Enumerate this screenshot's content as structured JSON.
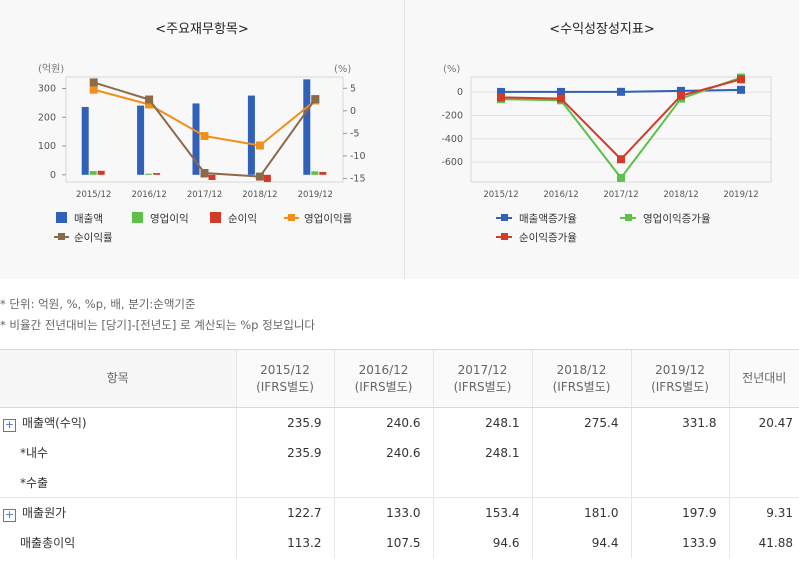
{
  "charts": {
    "left_title": "<주요재무항목>",
    "right_title": "<수익성장성지표>"
  },
  "chart_data": [
    {
      "type": "bar",
      "title": "<주요재무항목>",
      "y_left_unit": "(억원)",
      "y_right_unit": "(%)",
      "categories": [
        "2015/12",
        "2016/12",
        "2017/12",
        "2018/12",
        "2019/12"
      ],
      "y_left_ticks": [
        "0",
        "100",
        "200",
        "300"
      ],
      "y_right_ticks": [
        "5",
        "0",
        "-5",
        "-10",
        "-15"
      ],
      "ylim_left": [
        -25,
        340
      ],
      "ylim_right": [
        -15.8,
        7.5
      ],
      "bar_series": [
        {
          "name": "매출액",
          "color": "#3060b8",
          "values": [
            235.9,
            240.6,
            248.1,
            275.4,
            331.8
          ]
        },
        {
          "name": "영업이익",
          "color": "#5cc04a",
          "values": [
            13,
            4,
            -10,
            -12,
            12
          ]
        },
        {
          "name": "순이익",
          "color": "#d23a2a",
          "values": [
            14,
            6,
            -18,
            -25,
            10
          ]
        }
      ],
      "line_series": [
        {
          "name": "영업이익률",
          "color": "#f0901a",
          "values": [
            4.7,
            1.4,
            -5.6,
            -7.7,
            2.3
          ]
        },
        {
          "name": "순이익률",
          "color": "#8b6a4a",
          "values": [
            6.3,
            2.5,
            -13.8,
            -14.6,
            2.6
          ]
        }
      ],
      "legend": [
        "매출액",
        "영업이익",
        "순이익",
        "영업이익률",
        "순이익률"
      ]
    },
    {
      "type": "line",
      "title": "<수익성장성지표>",
      "y_unit": "(%)",
      "categories": [
        "2015/12",
        "2016/12",
        "2017/12",
        "2018/12",
        "2019/12"
      ],
      "y_ticks": [
        "0",
        "-200",
        "-400",
        "-600"
      ],
      "ylim": [
        -770,
        130
      ],
      "series": [
        {
          "name": "매출액증가율",
          "color": "#3060b8",
          "values": [
            2,
            2,
            3,
            11,
            20
          ]
        },
        {
          "name": "영업이익증가율",
          "color": "#5cc04a",
          "values": [
            -60,
            -70,
            -735,
            -55,
            125
          ]
        },
        {
          "name": "순이익증가율",
          "color": "#d23a2a",
          "values": [
            -45,
            -55,
            -575,
            -30,
            110
          ]
        }
      ],
      "legend": [
        "매출액증가율",
        "영업이익증가율",
        "순이익증가율"
      ]
    }
  ],
  "notes": [
    "* 단위: 억원, %, %p, 배, 분기:순액기준",
    "* 비율간 전년대비는 [당기]-[전년도] 로 계산되는 %p 정보입니다"
  ],
  "table": {
    "header_item": "항목",
    "periods": [
      {
        "year": "2015/12",
        "basis": "(IFRS별도)"
      },
      {
        "year": "2016/12",
        "basis": "(IFRS별도)"
      },
      {
        "year": "2017/12",
        "basis": "(IFRS별도)"
      },
      {
        "year": "2018/12",
        "basis": "(IFRS별도)"
      },
      {
        "year": "2019/12",
        "basis": "(IFRS별도)"
      }
    ],
    "header_change": "전년대비",
    "expand_symbol": "+",
    "rows": [
      {
        "label": "매출액(수익)",
        "values": [
          "235.9",
          "240.6",
          "248.1",
          "275.4",
          "331.8"
        ],
        "change": "20.47"
      },
      {
        "label": "*내수",
        "values": [
          "235.9",
          "240.6",
          "248.1",
          "",
          ""
        ],
        "change": ""
      },
      {
        "label": "*수출",
        "values": [
          "",
          "",
          "",
          "",
          ""
        ],
        "change": ""
      },
      {
        "label": "매출원가",
        "values": [
          "122.7",
          "133.0",
          "153.4",
          "181.0",
          "197.9"
        ],
        "change": "9.31"
      },
      {
        "label": "매출총이익",
        "values": [
          "113.2",
          "107.5",
          "94.6",
          "94.4",
          "133.9"
        ],
        "change": "41.88"
      }
    ]
  }
}
